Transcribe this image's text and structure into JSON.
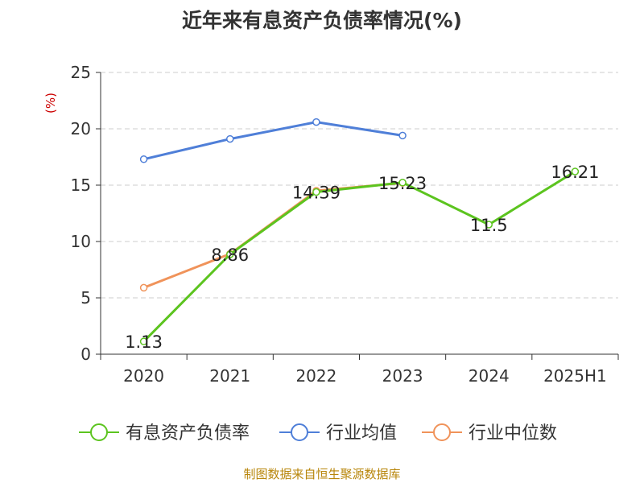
{
  "title": "近年来有息资产负债率情况(%)",
  "source": "制图数据来自恒生聚源数据库",
  "colors": {
    "debt": "#5cc41f",
    "avg": "#4f7fd8",
    "median": "#f0935a",
    "axis": "#333333",
    "unit": "#cc0000",
    "source": "#b8860b"
  },
  "chart_data": {
    "type": "line",
    "title": "近年来有息资产负债率情况(%)",
    "ylabel": "(%)",
    "xlabel": "",
    "ylim": [
      0,
      25
    ],
    "yticks": [
      0,
      5,
      10,
      15,
      20,
      25
    ],
    "categories": [
      "2020",
      "2021",
      "2022",
      "2023",
      "2024",
      "2025H1"
    ],
    "grid": true,
    "legend": "bottom",
    "series": [
      {
        "name": "有息资产负债率",
        "key": "debt",
        "values": [
          1.13,
          8.86,
          14.39,
          15.23,
          11.5,
          16.21
        ],
        "labels": [
          "1.13",
          "8.86",
          "14.39",
          "15.23",
          "11.5",
          "16.21"
        ]
      },
      {
        "name": "行业均值",
        "key": "avg",
        "values": [
          17.3,
          19.1,
          20.6,
          19.4,
          null,
          null
        ]
      },
      {
        "name": "行业中位数",
        "key": "median",
        "values": [
          5.9,
          8.9,
          14.5,
          15.2,
          null,
          null
        ]
      }
    ]
  }
}
